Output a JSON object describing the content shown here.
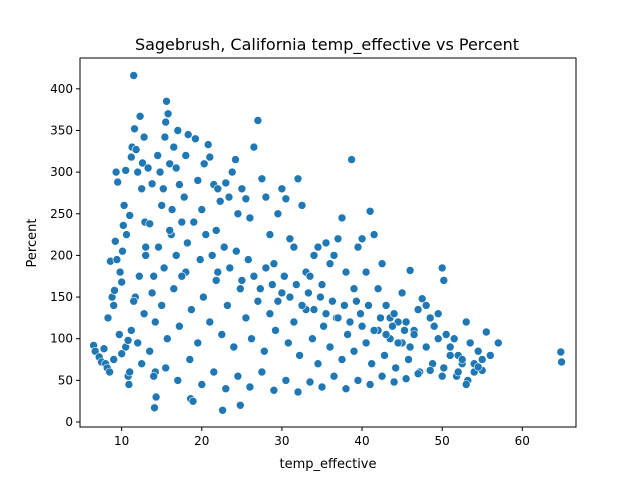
{
  "chart_data": {
    "type": "scatter",
    "title": "Sagebrush, California temp_effective vs Percent",
    "xlabel": "temp_effective",
    "ylabel": "Percent",
    "xlim": [
      4.8,
      66.7
    ],
    "ylim": [
      -6,
      437
    ],
    "xticks": [
      10,
      20,
      30,
      40,
      50,
      60
    ],
    "yticks": [
      0,
      50,
      100,
      150,
      200,
      250,
      300,
      350,
      400
    ],
    "grid": false,
    "legend": "none",
    "color": "#1f77b4",
    "points": [
      [
        6.5,
        92
      ],
      [
        6.7,
        85
      ],
      [
        7.2,
        78
      ],
      [
        7.5,
        72
      ],
      [
        7.8,
        88
      ],
      [
        8.0,
        70
      ],
      [
        8.2,
        65
      ],
      [
        8.5,
        60
      ],
      [
        8.3,
        125
      ],
      [
        8.6,
        193
      ],
      [
        8.8,
        150
      ],
      [
        9.0,
        140
      ],
      [
        9.1,
        158
      ],
      [
        9.3,
        300
      ],
      [
        9.2,
        217
      ],
      [
        9.5,
        288
      ],
      [
        9.4,
        195
      ],
      [
        9.7,
        105
      ],
      [
        9.8,
        180
      ],
      [
        10.0,
        168
      ],
      [
        10.2,
        236
      ],
      [
        10.3,
        260
      ],
      [
        10.1,
        205
      ],
      [
        10.5,
        302
      ],
      [
        10.6,
        225
      ],
      [
        10.8,
        55
      ],
      [
        10.9,
        45
      ],
      [
        11.0,
        248
      ],
      [
        11.2,
        318
      ],
      [
        11.3,
        330
      ],
      [
        11.5,
        416
      ],
      [
        11.6,
        352
      ],
      [
        11.8,
        327
      ],
      [
        11.7,
        150
      ],
      [
        12.0,
        300
      ],
      [
        12.3,
        367
      ],
      [
        12.5,
        280
      ],
      [
        12.6,
        311
      ],
      [
        12.8,
        342
      ],
      [
        12.9,
        240
      ],
      [
        13.0,
        210
      ],
      [
        13.3,
        305
      ],
      [
        13.5,
        238
      ],
      [
        13.8,
        286
      ],
      [
        14.0,
        175
      ],
      [
        14.2,
        60
      ],
      [
        14.3,
        30
      ],
      [
        14.1,
        17
      ],
      [
        14.5,
        320
      ],
      [
        14.8,
        300
      ],
      [
        15.0,
        260
      ],
      [
        15.2,
        280
      ],
      [
        15.4,
        342
      ],
      [
        15.5,
        360
      ],
      [
        15.6,
        385
      ],
      [
        15.8,
        370
      ],
      [
        16.0,
        310
      ],
      [
        16.2,
        225
      ],
      [
        16.3,
        255
      ],
      [
        16.5,
        330
      ],
      [
        16.8,
        305
      ],
      [
        17.0,
        350
      ],
      [
        17.2,
        285
      ],
      [
        17.5,
        240
      ],
      [
        17.8,
        270
      ],
      [
        18.0,
        320
      ],
      [
        18.3,
        345
      ],
      [
        18.6,
        28
      ],
      [
        18.9,
        25
      ],
      [
        19.2,
        340
      ],
      [
        19.5,
        290
      ],
      [
        20.0,
        255
      ],
      [
        20.3,
        310
      ],
      [
        20.8,
        333
      ],
      [
        21.0,
        318
      ],
      [
        21.5,
        285
      ],
      [
        21.8,
        230
      ],
      [
        22.0,
        280
      ],
      [
        22.3,
        265
      ],
      [
        22.6,
        14
      ],
      [
        23.0,
        287
      ],
      [
        23.4,
        270
      ],
      [
        23.8,
        300
      ],
      [
        24.2,
        315
      ],
      [
        24.5,
        250
      ],
      [
        24.8,
        20
      ],
      [
        25.0,
        280
      ],
      [
        25.5,
        268
      ],
      [
        26.0,
        245
      ],
      [
        26.5,
        330
      ],
      [
        27.0,
        362
      ],
      [
        27.5,
        292
      ],
      [
        28.0,
        270
      ],
      [
        28.5,
        225
      ],
      [
        29.0,
        190
      ],
      [
        29.5,
        250
      ],
      [
        30.0,
        280
      ],
      [
        30.5,
        268
      ],
      [
        31.0,
        220
      ],
      [
        31.5,
        210
      ],
      [
        32.0,
        292
      ],
      [
        32.5,
        260
      ],
      [
        33.0,
        180
      ],
      [
        33.5,
        175
      ],
      [
        34.0,
        200
      ],
      [
        34.5,
        210
      ],
      [
        35.0,
        165
      ],
      [
        35.5,
        215
      ],
      [
        36.0,
        190
      ],
      [
        36.5,
        200
      ],
      [
        37.0,
        220
      ],
      [
        37.5,
        245
      ],
      [
        38.0,
        180
      ],
      [
        38.7,
        315
      ],
      [
        39.0,
        160
      ],
      [
        39.5,
        210
      ],
      [
        40.0,
        220
      ],
      [
        40.5,
        180
      ],
      [
        41.0,
        253
      ],
      [
        41.5,
        225
      ],
      [
        42.0,
        160
      ],
      [
        42.5,
        190
      ],
      [
        43.0,
        140
      ],
      [
        43.5,
        125
      ],
      [
        44.0,
        130
      ],
      [
        44.5,
        120
      ],
      [
        45.0,
        155
      ],
      [
        45.5,
        120
      ],
      [
        46.0,
        182
      ],
      [
        46.5,
        110
      ],
      [
        47.0,
        135
      ],
      [
        47.5,
        148
      ],
      [
        48.0,
        140
      ],
      [
        48.5,
        125
      ],
      [
        49.0,
        115
      ],
      [
        49.5,
        130
      ],
      [
        50.0,
        185
      ],
      [
        50.2,
        170
      ],
      [
        50.5,
        105
      ],
      [
        51.0,
        90
      ],
      [
        51.5,
        100
      ],
      [
        52.0,
        80
      ],
      [
        52.5,
        70
      ],
      [
        53.0,
        120
      ],
      [
        53.5,
        95
      ],
      [
        54.0,
        60
      ],
      [
        54.5,
        85
      ],
      [
        55.0,
        75
      ],
      [
        55.5,
        108
      ],
      [
        56.0,
        80
      ],
      [
        57.0,
        95
      ],
      [
        64.8,
        84
      ],
      [
        64.9,
        72
      ],
      [
        10.5,
        90
      ],
      [
        11.2,
        110
      ],
      [
        12.0,
        95
      ],
      [
        12.8,
        130
      ],
      [
        13.5,
        85
      ],
      [
        14.2,
        120
      ],
      [
        15.0,
        140
      ],
      [
        15.7,
        100
      ],
      [
        16.5,
        160
      ],
      [
        17.2,
        115
      ],
      [
        18.0,
        180
      ],
      [
        18.7,
        135
      ],
      [
        19.5,
        95
      ],
      [
        20.2,
        150
      ],
      [
        21.0,
        120
      ],
      [
        21.8,
        170
      ],
      [
        22.5,
        105
      ],
      [
        23.2,
        140
      ],
      [
        24.0,
        90
      ],
      [
        24.8,
        160
      ],
      [
        25.5,
        125
      ],
      [
        26.2,
        100
      ],
      [
        27.0,
        145
      ],
      [
        27.8,
        85
      ],
      [
        28.5,
        130
      ],
      [
        29.2,
        110
      ],
      [
        30.0,
        155
      ],
      [
        30.8,
        95
      ],
      [
        31.5,
        120
      ],
      [
        32.2,
        80
      ],
      [
        33.0,
        135
      ],
      [
        33.8,
        100
      ],
      [
        34.5,
        70
      ],
      [
        35.2,
        115
      ],
      [
        36.0,
        90
      ],
      [
        36.8,
        125
      ],
      [
        37.5,
        75
      ],
      [
        38.2,
        105
      ],
      [
        39.0,
        85
      ],
      [
        39.8,
        130
      ],
      [
        40.5,
        95
      ],
      [
        41.2,
        70
      ],
      [
        42.0,
        110
      ],
      [
        42.8,
        80
      ],
      [
        43.5,
        100
      ],
      [
        44.2,
        65
      ],
      [
        45.0,
        95
      ],
      [
        45.8,
        75
      ],
      [
        46.5,
        105
      ],
      [
        47.2,
        60
      ],
      [
        48.0,
        90
      ],
      [
        48.8,
        70
      ],
      [
        49.5,
        100
      ],
      [
        50.2,
        65
      ],
      [
        51.0,
        80
      ],
      [
        51.8,
        55
      ],
      [
        52.5,
        75
      ],
      [
        53.2,
        50
      ],
      [
        54.0,
        70
      ],
      [
        55.0,
        62
      ],
      [
        11.0,
        60
      ],
      [
        12.5,
        70
      ],
      [
        14.0,
        55
      ],
      [
        15.5,
        65
      ],
      [
        17.0,
        50
      ],
      [
        18.5,
        75
      ],
      [
        20.0,
        45
      ],
      [
        21.5,
        60
      ],
      [
        23.0,
        40
      ],
      [
        24.5,
        55
      ],
      [
        26.0,
        42
      ],
      [
        27.5,
        60
      ],
      [
        29.0,
        38
      ],
      [
        30.5,
        50
      ],
      [
        32.0,
        36
      ],
      [
        33.5,
        48
      ],
      [
        35.0,
        42
      ],
      [
        36.5,
        55
      ],
      [
        38.0,
        40
      ],
      [
        39.5,
        50
      ],
      [
        41.0,
        45
      ],
      [
        42.5,
        55
      ],
      [
        44.0,
        48
      ],
      [
        45.5,
        52
      ],
      [
        47.0,
        58
      ],
      [
        48.5,
        62
      ],
      [
        50.0,
        55
      ],
      [
        52.0,
        60
      ],
      [
        53.0,
        45
      ],
      [
        54.5,
        66
      ],
      [
        9.0,
        75
      ],
      [
        10.0,
        82
      ],
      [
        10.8,
        98
      ],
      [
        11.5,
        145
      ],
      [
        12.2,
        175
      ],
      [
        13.0,
        200
      ],
      [
        13.8,
        155
      ],
      [
        14.6,
        210
      ],
      [
        15.3,
        185
      ],
      [
        16.0,
        230
      ],
      [
        16.8,
        200
      ],
      [
        17.5,
        175
      ],
      [
        18.2,
        215
      ],
      [
        19.0,
        240
      ],
      [
        19.8,
        195
      ],
      [
        20.5,
        225
      ],
      [
        21.3,
        200
      ],
      [
        22.0,
        180
      ],
      [
        22.8,
        210
      ],
      [
        23.5,
        185
      ],
      [
        24.3,
        205
      ],
      [
        25.0,
        170
      ],
      [
        25.8,
        195
      ],
      [
        26.5,
        175
      ],
      [
        27.3,
        160
      ],
      [
        28.0,
        185
      ],
      [
        28.8,
        165
      ],
      [
        29.5,
        145
      ],
      [
        30.3,
        175
      ],
      [
        31.0,
        150
      ],
      [
        31.8,
        165
      ],
      [
        32.5,
        140
      ],
      [
        33.3,
        155
      ],
      [
        34.0,
        135
      ],
      [
        34.8,
        150
      ],
      [
        35.5,
        130
      ],
      [
        36.3,
        145
      ],
      [
        37.0,
        125
      ],
      [
        37.8,
        140
      ],
      [
        38.5,
        120
      ],
      [
        39.3,
        145
      ],
      [
        40.0,
        115
      ],
      [
        40.8,
        140
      ],
      [
        41.5,
        110
      ],
      [
        42.3,
        125
      ],
      [
        43.0,
        105
      ],
      [
        43.8,
        115
      ],
      [
        44.5,
        95
      ],
      [
        45.3,
        110
      ],
      [
        46.0,
        90
      ]
    ]
  }
}
